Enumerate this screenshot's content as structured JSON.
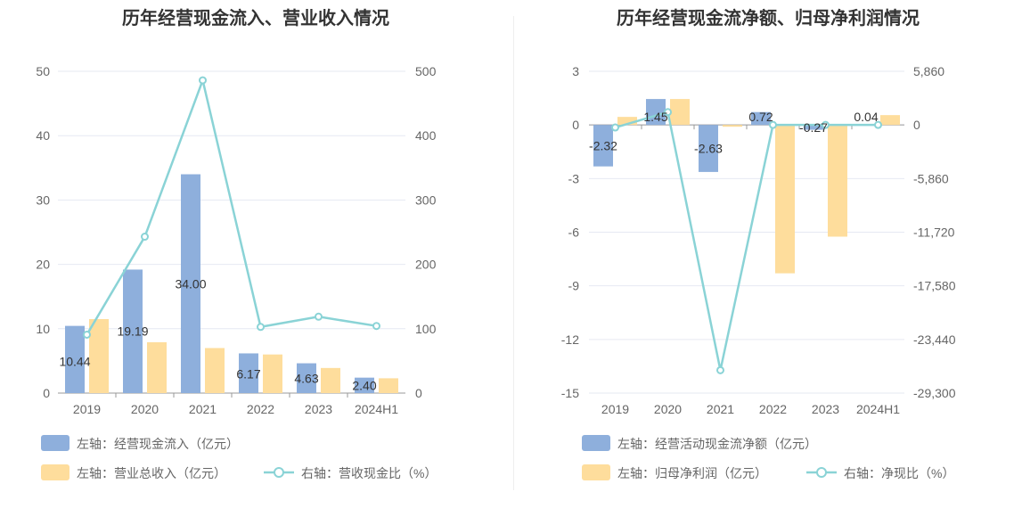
{
  "charts": [
    {
      "type": "bar+line",
      "title": "历年经营现金流入、营业收入情况",
      "categories": [
        "2019",
        "2020",
        "2021",
        "2022",
        "2023",
        "2024H1"
      ],
      "left_axis": {
        "min": 0,
        "max": 50,
        "ticks": [
          "0",
          "10",
          "20",
          "30",
          "40",
          "50"
        ]
      },
      "right_axis": {
        "min": 0,
        "max": 500,
        "ticks": [
          "0",
          "100",
          "200",
          "300",
          "400",
          "500"
        ]
      },
      "series": [
        {
          "name": "左轴：经营现金流入（亿元）",
          "kind": "bar",
          "axis": "left",
          "color": "#8eafdc",
          "values": [
            10.44,
            19.19,
            34.0,
            6.17,
            4.63,
            2.4
          ],
          "labels": [
            "10.44",
            "19.19",
            "34.00",
            "6.17",
            "4.63",
            "2.40"
          ]
        },
        {
          "name": "左轴：营业总收入（亿元）",
          "kind": "bar",
          "axis": "left",
          "color": "#fedd9c",
          "values": [
            11.5,
            7.9,
            7.0,
            6.0,
            3.9,
            2.3
          ]
        },
        {
          "name": "右轴：营收现金比（%）",
          "kind": "line",
          "axis": "right",
          "color": "#8ad3d6",
          "values": [
            90.8,
            243,
            486,
            102.8,
            118.7,
            104.3
          ]
        }
      ]
    },
    {
      "type": "bar+line",
      "title": "历年经营现金流净额、归母净利润情况",
      "categories": [
        "2019",
        "2020",
        "2021",
        "2022",
        "2023",
        "2024H1"
      ],
      "left_axis": {
        "min": -15,
        "max": 3,
        "ticks": [
          "-15",
          "-12",
          "-9",
          "-6",
          "-3",
          "0",
          "3"
        ]
      },
      "right_axis": {
        "min": -29300,
        "max": 5860,
        "ticks": [
          "-29,300",
          "-23,440",
          "-17,580",
          "-11,720",
          "-5,860",
          "0",
          "5,860"
        ]
      },
      "series": [
        {
          "name": "左轴：经营活动现金流净额（亿元）",
          "kind": "bar",
          "axis": "left",
          "color": "#8eafdc",
          "values": [
            -2.32,
            1.45,
            -2.63,
            0.72,
            -0.27,
            0.04
          ],
          "labels": [
            "-2.32",
            "1.45",
            "-2.63",
            "0.72",
            "-0.27",
            "0.04"
          ]
        },
        {
          "name": "左轴：归母净利润（亿元）",
          "kind": "bar",
          "axis": "left",
          "color": "#fedd9c",
          "values": [
            0.45,
            1.45,
            -0.1,
            -8.3,
            -6.25,
            0.55
          ]
        },
        {
          "name": "右轴：净现比（%）",
          "kind": "line",
          "axis": "right",
          "color": "#8ad3d6",
          "values": [
            -280,
            1400,
            -26800,
            0,
            0,
            0
          ]
        }
      ]
    }
  ]
}
